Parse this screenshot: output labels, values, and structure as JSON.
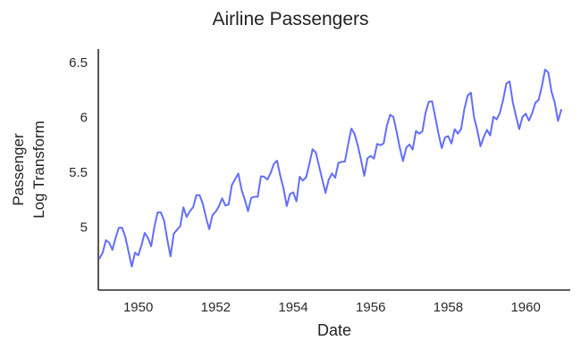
{
  "figure": {
    "title": "Airline Passengers",
    "xlabel": "Date",
    "ylabel": "Passenger\nLog Transform"
  },
  "chart_data": {
    "type": "line",
    "title": "Airline Passengers",
    "xlabel": "Date",
    "ylabel": "Passenger Log Transform",
    "series_name": "passenger-log-transform",
    "line_color": "#636EFA",
    "axis_color": "#2a2a2a",
    "grid": false,
    "legend": "none",
    "x_start_year": 1949,
    "x_frequency": "monthly",
    "x_end_year": 1960.917,
    "xlim": [
      1948.97,
      1961.15
    ],
    "ylim": [
      4.43,
      6.62
    ],
    "x_ticks": [
      1950,
      1952,
      1954,
      1956,
      1958,
      1960
    ],
    "y_ticks": [
      5,
      5.5,
      6,
      6.5
    ],
    "values": [
      4.718,
      4.771,
      4.883,
      4.86,
      4.796,
      4.905,
      4.997,
      4.997,
      4.913,
      4.779,
      4.644,
      4.771,
      4.745,
      4.836,
      4.949,
      4.905,
      4.828,
      5.004,
      5.136,
      5.136,
      5.063,
      4.89,
      4.736,
      4.942,
      4.977,
      5.011,
      5.182,
      5.094,
      5.147,
      5.182,
      5.293,
      5.293,
      5.215,
      5.088,
      4.984,
      5.112,
      5.142,
      5.193,
      5.263,
      5.198,
      5.209,
      5.384,
      5.438,
      5.489,
      5.342,
      5.252,
      5.147,
      5.268,
      5.278,
      5.278,
      5.464,
      5.46,
      5.434,
      5.493,
      5.576,
      5.606,
      5.468,
      5.352,
      5.193,
      5.303,
      5.318,
      5.236,
      5.46,
      5.425,
      5.455,
      5.576,
      5.71,
      5.68,
      5.557,
      5.434,
      5.313,
      5.434,
      5.489,
      5.451,
      5.587,
      5.595,
      5.598,
      5.753,
      5.897,
      5.849,
      5.743,
      5.613,
      5.468,
      5.628,
      5.649,
      5.624,
      5.759,
      5.746,
      5.762,
      5.924,
      6.023,
      6.004,
      5.872,
      5.724,
      5.602,
      5.724,
      5.753,
      5.707,
      5.875,
      5.852,
      5.872,
      6.045,
      6.142,
      6.146,
      6.001,
      5.849,
      5.72,
      5.817,
      5.829,
      5.762,
      5.892,
      5.852,
      5.894,
      6.075,
      6.196,
      6.225,
      6.001,
      5.883,
      5.737,
      5.82,
      5.886,
      5.835,
      6.006,
      5.981,
      6.04,
      6.157,
      6.306,
      6.326,
      6.138,
      6.009,
      5.892,
      6.004,
      6.033,
      5.969,
      6.038,
      6.133,
      6.157,
      6.282,
      6.433,
      6.407,
      6.23,
      6.133,
      5.966,
      6.068
    ]
  }
}
